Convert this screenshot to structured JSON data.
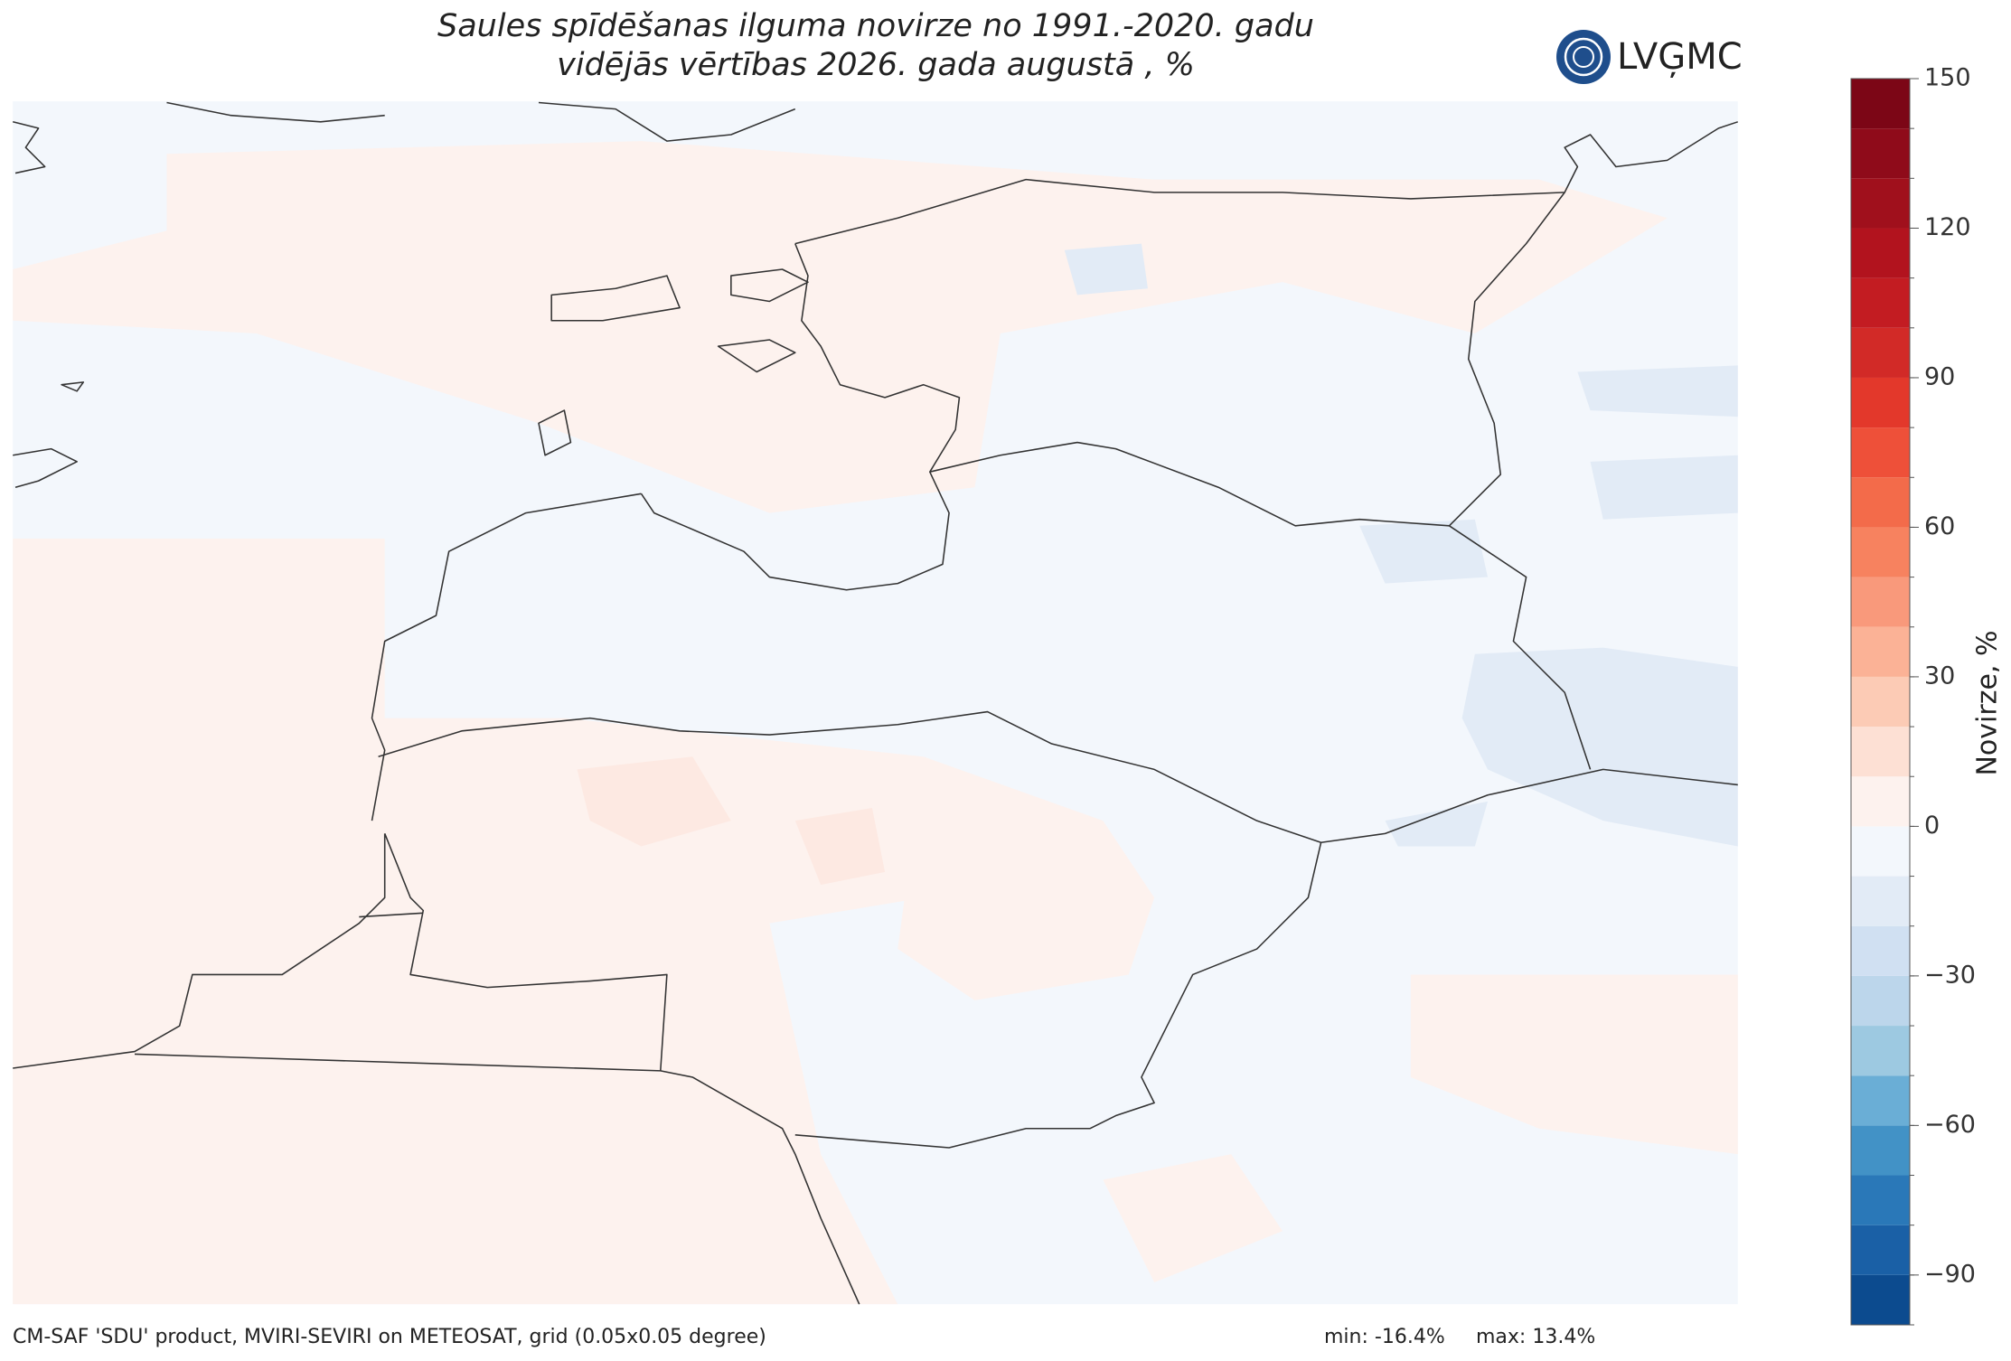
{
  "header": {
    "title": [
      "Saules spīdēšanas ilguma novirze no 1991.-2020. gadu",
      "vidējās vērtības 2026. gada augustā , %"
    ],
    "logo": "LVĢMC"
  },
  "colorbar": {
    "label": "Novirze, %",
    "bounds": [
      -100,
      -90,
      -80,
      -70,
      -60,
      -50,
      -40,
      -30,
      -20,
      -10,
      0,
      10,
      20,
      30,
      40,
      50,
      60,
      70,
      80,
      90,
      100,
      110,
      120,
      130,
      140,
      150
    ],
    "colors": [
      "#0c4b8f",
      "#1a60a6",
      "#2a78b8",
      "#4292c6",
      "#6aaed6",
      "#9dc9e1",
      "#bcd6eb",
      "#d0e0f2",
      "#e2ebf6",
      "#f3f7fc",
      "#fdf2ee",
      "#fde0d4",
      "#fccbb5",
      "#fbb296",
      "#f9997b",
      "#f7825f",
      "#f36b4a",
      "#ee5039",
      "#e3382b",
      "#d22a27",
      "#c31c22",
      "#b2131e",
      "#a0101c",
      "#8f0b1a",
      "#7c0616"
    ],
    "ticks": [
      {
        "value": -90,
        "label": "−90"
      },
      {
        "value": -60,
        "label": "−60"
      },
      {
        "value": -30,
        "label": "−30"
      },
      0,
      30,
      60,
      90,
      120,
      150
    ]
  },
  "footer": {
    "source": "CM-SAF 'SDU' product, MVIRI-SEVIRI on METEOSAT, grid (0.05x0.05 degree)",
    "min": "min: -16.4%",
    "max": "max: 13.4%"
  }
}
